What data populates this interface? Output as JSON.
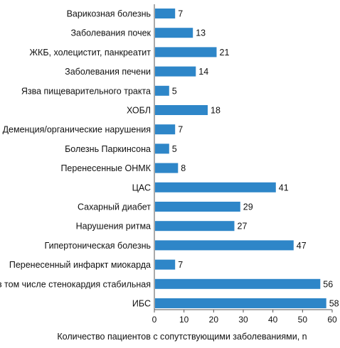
{
  "chart_data": {
    "type": "bar",
    "orientation": "horizontal",
    "categories": [
      "Варикозная болезнь",
      "Заболевания почек",
      "ЖКБ, холецистит, панкреатит",
      "Заболевания печени",
      "Язва пищеварительного тракта",
      "ХОБЛ",
      "Деменция/органические нарушения",
      "Болезнь Паркинсона",
      "Перенесенные ОНМК",
      "ЦАС",
      "Сахарный диабет",
      "Нарушения ритма",
      "Гипертоническая болезнь",
      "Перенесенный инфаркт миокарда",
      "в том числе стенокардия стабильная",
      "ИБС"
    ],
    "values": [
      7,
      13,
      21,
      14,
      5,
      18,
      7,
      5,
      8,
      41,
      29,
      27,
      47,
      7,
      56,
      58
    ],
    "value_labels": [
      "7",
      "13",
      "21",
      "14",
      "5",
      "18",
      "7",
      "5",
      "8",
      "41",
      "29",
      "27",
      "47",
      "7",
      "56",
      "58"
    ],
    "xlabel": "Количество пациентов с сопутствующими заболеваниями, n",
    "xlim": [
      0,
      60
    ],
    "xticks": [
      0,
      10,
      20,
      30,
      40,
      50,
      60
    ],
    "xtick_labels": [
      "0",
      "10",
      "20",
      "30",
      "40",
      "50",
      "60"
    ],
    "grid": false,
    "bar_color": "#2e86c8",
    "axis_color": "#555555"
  }
}
